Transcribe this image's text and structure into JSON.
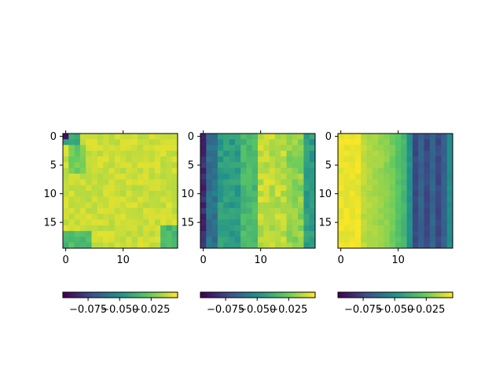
{
  "chart_data": [
    {
      "type": "heatmap",
      "title": "",
      "xlabel": "",
      "ylabel": "",
      "x_ticks": [
        "0",
        "10"
      ],
      "y_ticks": [
        "0",
        "5",
        "10",
        "15"
      ],
      "grid_rows": 20,
      "grid_cols": 20,
      "description_of_values": "mostly high values (yellow-green ~ -0.01 to -0.03) with a dark corner cell at top-left and darker teal patches along top-left and bottom edges",
      "colorbar": {
        "tick_labels": [
          "−0.075",
          "−0.050",
          "−0.025"
        ],
        "vmin": -0.095,
        "vmax": -0.004
      }
    },
    {
      "type": "heatmap",
      "title": "",
      "xlabel": "",
      "ylabel": "",
      "x_ticks": [
        "0",
        "10"
      ],
      "y_ticks": [
        "0",
        "5",
        "10",
        "15"
      ],
      "grid_rows": 20,
      "grid_cols": 20,
      "description_of_values": "dark purple column at left, teal/green band cols 1-9, bright yellow streaks cols 10-17, teal at far right",
      "colorbar": {
        "tick_labels": [
          "−0.075",
          "−0.050",
          "−0.025"
        ],
        "vmin": -0.095,
        "vmax": -0.004
      }
    },
    {
      "type": "heatmap",
      "title": "",
      "xlabel": "",
      "ylabel": "",
      "x_ticks": [
        "0",
        "10"
      ],
      "y_ticks": [
        "0",
        "5",
        "10",
        "15"
      ],
      "grid_rows": 20,
      "grid_cols": 20,
      "description_of_values": "yellow on the left fading to green at col ~11, dark blue/purple columns 13-18, teal last column",
      "colorbar": {
        "tick_labels": [
          "−0.075",
          "−0.050",
          "−0.025"
        ],
        "vmin": -0.095,
        "vmax": -0.004
      }
    }
  ],
  "colormap": [
    "#440154",
    "#3b528b",
    "#21918c",
    "#5ec962",
    "#fde725"
  ]
}
